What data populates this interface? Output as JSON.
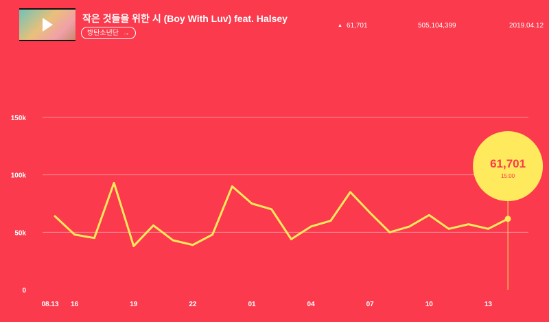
{
  "song": {
    "title": "작은 것들을 위한 시 (Boy With Luv) feat. Halsey",
    "artist": "방탄소년단",
    "artist_arrow": "→",
    "change": "61,701",
    "total_views": "505,104,399",
    "release_date": "2019.04.12"
  },
  "icons": {
    "thumbnail_play": "play-icon",
    "change": "up-triangle-icon"
  },
  "colors": {
    "background": "#fb3a4d",
    "line": "#ffe95c",
    "grid": "#ff8a95",
    "callout_text": "#fb3a4d"
  },
  "chart_data": {
    "type": "line",
    "title": "",
    "xlabel": "",
    "ylabel": "",
    "ylim": [
      0,
      150000
    ],
    "yticks": [
      {
        "value": 0,
        "label": "0"
      },
      {
        "value": 50000,
        "label": "50k"
      },
      {
        "value": 100000,
        "label": "100k"
      },
      {
        "value": 150000,
        "label": "150k"
      }
    ],
    "xticks": [
      {
        "index": 0,
        "label": "08.13"
      },
      {
        "index": 1,
        "label": "16"
      },
      {
        "index": 4,
        "label": "19"
      },
      {
        "index": 7,
        "label": "22"
      },
      {
        "index": 10,
        "label": "01"
      },
      {
        "index": 13,
        "label": "04"
      },
      {
        "index": 16,
        "label": "07"
      },
      {
        "index": 19,
        "label": "10"
      },
      {
        "index": 22,
        "label": "13"
      }
    ],
    "grid": true,
    "series": [
      {
        "values": [
          64000,
          48000,
          45000,
          93000,
          38000,
          56000,
          43000,
          39000,
          48000,
          90000,
          75000,
          70000,
          44000,
          55000,
          60000,
          85000,
          67000,
          50000,
          55000,
          65000,
          53000,
          57000,
          53000,
          61701
        ]
      }
    ],
    "callout": {
      "value": "61,701",
      "time": "15:00"
    }
  }
}
